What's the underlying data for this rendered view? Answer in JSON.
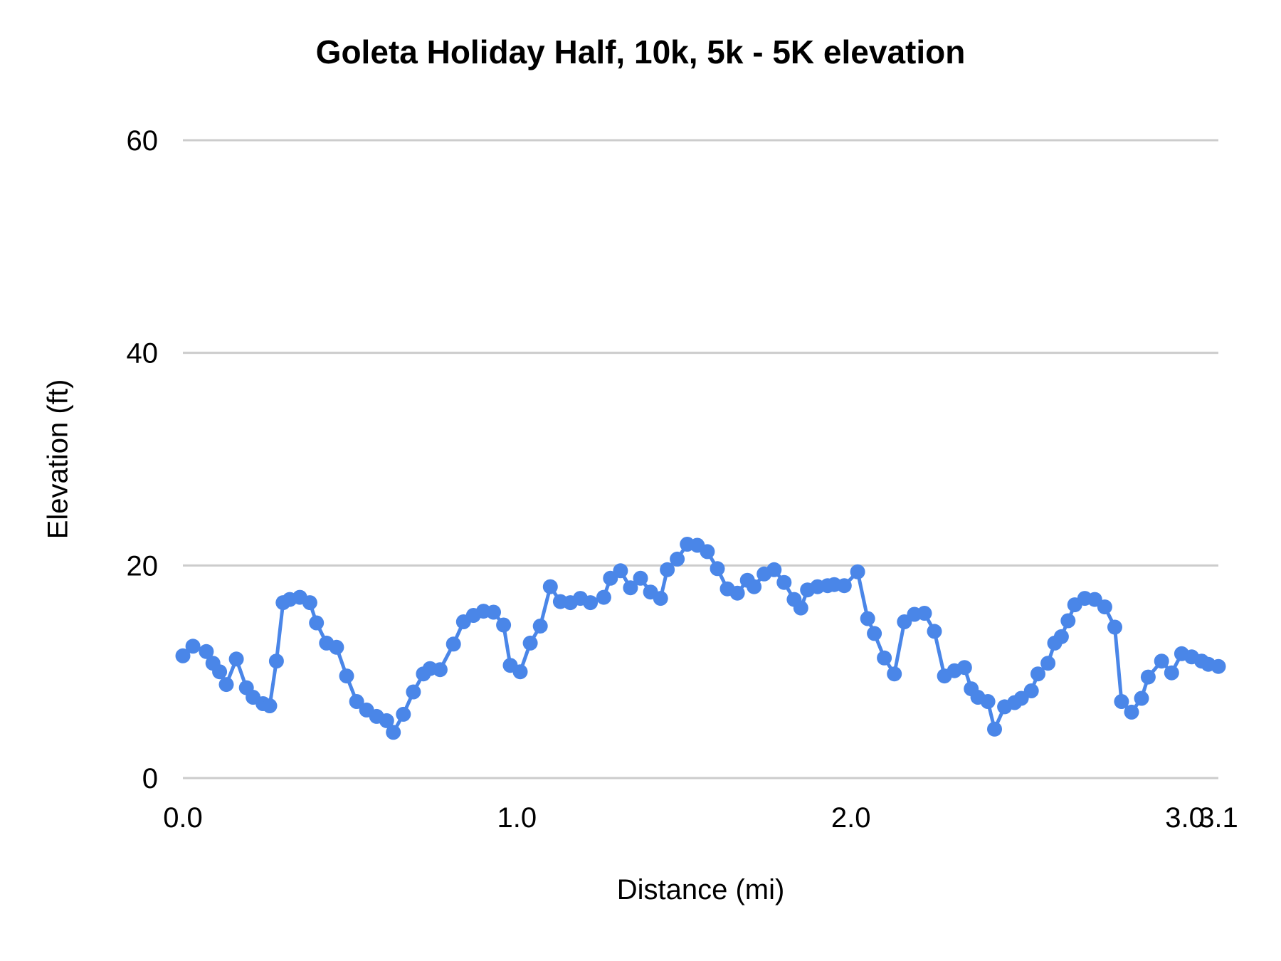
{
  "chart_data": {
    "type": "line",
    "title": "Goleta Holiday Half, 10k, 5k - 5K elevation",
    "xlabel": "Distance (mi)",
    "ylabel": "Elevation (ft)",
    "xlim": [
      0,
      3.1
    ],
    "ylim": [
      0,
      60
    ],
    "x_ticks": [
      0.0,
      1.0,
      2.0,
      3.0,
      3.1
    ],
    "x_tick_labels": [
      "0.0",
      "1.0",
      "2.0",
      "3.0",
      "3.1"
    ],
    "y_ticks": [
      0,
      20,
      40,
      60
    ],
    "y_tick_labels": [
      "0",
      "20",
      "40",
      "60"
    ],
    "grid": "horizontal-only",
    "legend": "none",
    "marker": "circle",
    "points": [
      [
        0.0,
        11.5
      ],
      [
        0.03,
        12.4
      ],
      [
        0.07,
        11.9
      ],
      [
        0.09,
        10.8
      ],
      [
        0.11,
        10.0
      ],
      [
        0.13,
        8.8
      ],
      [
        0.16,
        11.2
      ],
      [
        0.19,
        8.5
      ],
      [
        0.21,
        7.6
      ],
      [
        0.24,
        7.0
      ],
      [
        0.26,
        6.8
      ],
      [
        0.28,
        11.0
      ],
      [
        0.3,
        16.5
      ],
      [
        0.32,
        16.8
      ],
      [
        0.35,
        17.0
      ],
      [
        0.38,
        16.5
      ],
      [
        0.4,
        14.6
      ],
      [
        0.43,
        12.7
      ],
      [
        0.46,
        12.3
      ],
      [
        0.49,
        9.6
      ],
      [
        0.52,
        7.2
      ],
      [
        0.55,
        6.4
      ],
      [
        0.58,
        5.8
      ],
      [
        0.61,
        5.4
      ],
      [
        0.63,
        4.3
      ],
      [
        0.66,
        6.0
      ],
      [
        0.69,
        8.1
      ],
      [
        0.72,
        9.8
      ],
      [
        0.74,
        10.3
      ],
      [
        0.77,
        10.2
      ],
      [
        0.81,
        12.6
      ],
      [
        0.84,
        14.7
      ],
      [
        0.87,
        15.3
      ],
      [
        0.9,
        15.7
      ],
      [
        0.93,
        15.6
      ],
      [
        0.96,
        14.4
      ],
      [
        0.98,
        10.6
      ],
      [
        1.01,
        10.0
      ],
      [
        1.04,
        12.7
      ],
      [
        1.07,
        14.3
      ],
      [
        1.1,
        18.0
      ],
      [
        1.13,
        16.6
      ],
      [
        1.16,
        16.5
      ],
      [
        1.19,
        16.9
      ],
      [
        1.22,
        16.5
      ],
      [
        1.26,
        17.0
      ],
      [
        1.28,
        18.8
      ],
      [
        1.31,
        19.5
      ],
      [
        1.34,
        17.9
      ],
      [
        1.37,
        18.8
      ],
      [
        1.4,
        17.5
      ],
      [
        1.43,
        16.9
      ],
      [
        1.45,
        19.6
      ],
      [
        1.48,
        20.6
      ],
      [
        1.51,
        22.0
      ],
      [
        1.54,
        21.9
      ],
      [
        1.57,
        21.3
      ],
      [
        1.6,
        19.7
      ],
      [
        1.63,
        17.8
      ],
      [
        1.66,
        17.4
      ],
      [
        1.69,
        18.6
      ],
      [
        1.71,
        18.0
      ],
      [
        1.74,
        19.2
      ],
      [
        1.77,
        19.6
      ],
      [
        1.8,
        18.4
      ],
      [
        1.83,
        16.8
      ],
      [
        1.85,
        16.0
      ],
      [
        1.87,
        17.7
      ],
      [
        1.9,
        18.0
      ],
      [
        1.93,
        18.1
      ],
      [
        1.95,
        18.2
      ],
      [
        1.98,
        18.1
      ],
      [
        2.02,
        19.4
      ],
      [
        2.05,
        15.0
      ],
      [
        2.07,
        13.6
      ],
      [
        2.1,
        11.3
      ],
      [
        2.13,
        9.8
      ],
      [
        2.16,
        14.7
      ],
      [
        2.19,
        15.4
      ],
      [
        2.22,
        15.5
      ],
      [
        2.25,
        13.8
      ],
      [
        2.28,
        9.6
      ],
      [
        2.31,
        10.1
      ],
      [
        2.34,
        10.4
      ],
      [
        2.36,
        8.4
      ],
      [
        2.38,
        7.6
      ],
      [
        2.41,
        7.2
      ],
      [
        2.43,
        4.6
      ],
      [
        2.46,
        6.7
      ],
      [
        2.49,
        7.1
      ],
      [
        2.51,
        7.5
      ],
      [
        2.54,
        8.2
      ],
      [
        2.56,
        9.8
      ],
      [
        2.59,
        10.8
      ],
      [
        2.61,
        12.7
      ],
      [
        2.63,
        13.3
      ],
      [
        2.65,
        14.8
      ],
      [
        2.67,
        16.3
      ],
      [
        2.7,
        16.9
      ],
      [
        2.73,
        16.8
      ],
      [
        2.76,
        16.1
      ],
      [
        2.79,
        14.2
      ],
      [
        2.81,
        7.2
      ],
      [
        2.84,
        6.2
      ],
      [
        2.87,
        7.5
      ],
      [
        2.89,
        9.5
      ],
      [
        2.93,
        11.0
      ],
      [
        2.96,
        9.9
      ],
      [
        2.99,
        11.7
      ],
      [
        3.02,
        11.4
      ],
      [
        3.05,
        11.0
      ],
      [
        3.07,
        10.7
      ],
      [
        3.1,
        10.5
      ]
    ]
  },
  "colors": {
    "series": "#4a86e8",
    "gridline": "#cccccc",
    "text": "#000000",
    "background": "#ffffff"
  }
}
